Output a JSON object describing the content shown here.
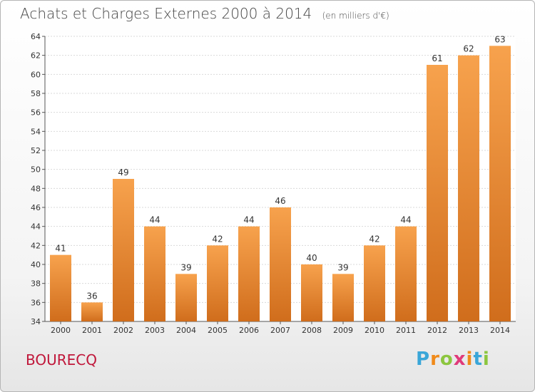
{
  "chart_data": {
    "type": "bar",
    "title": "Achats et Charges Externes 2000 à 2014",
    "subtitle": "(en milliers d'€)",
    "categories": [
      "2000",
      "2001",
      "2002",
      "2003",
      "2004",
      "2005",
      "2006",
      "2007",
      "2008",
      "2009",
      "2010",
      "2011",
      "2012",
      "2013",
      "2014"
    ],
    "values": [
      41,
      36,
      49,
      44,
      39,
      42,
      44,
      46,
      40,
      39,
      42,
      44,
      61,
      62,
      63
    ],
    "ylim": [
      34,
      64
    ],
    "yticks": [
      34,
      36,
      38,
      40,
      42,
      44,
      46,
      48,
      50,
      52,
      54,
      56,
      58,
      60,
      62,
      64
    ],
    "grid": true,
    "bar_color_top": "#f7a24d",
    "bar_color_bottom": "#d06d1c"
  },
  "footer": {
    "place": "BOURECQ",
    "logo_letters": [
      "P",
      "r",
      "o",
      "x",
      "i",
      "t",
      "i"
    ],
    "logo_colors": [
      "#3aa6d8",
      "#f08a1a",
      "#8cc63f",
      "#e03a7a",
      "#f08a1a",
      "#3aa6d8",
      "#8cc63f"
    ]
  }
}
